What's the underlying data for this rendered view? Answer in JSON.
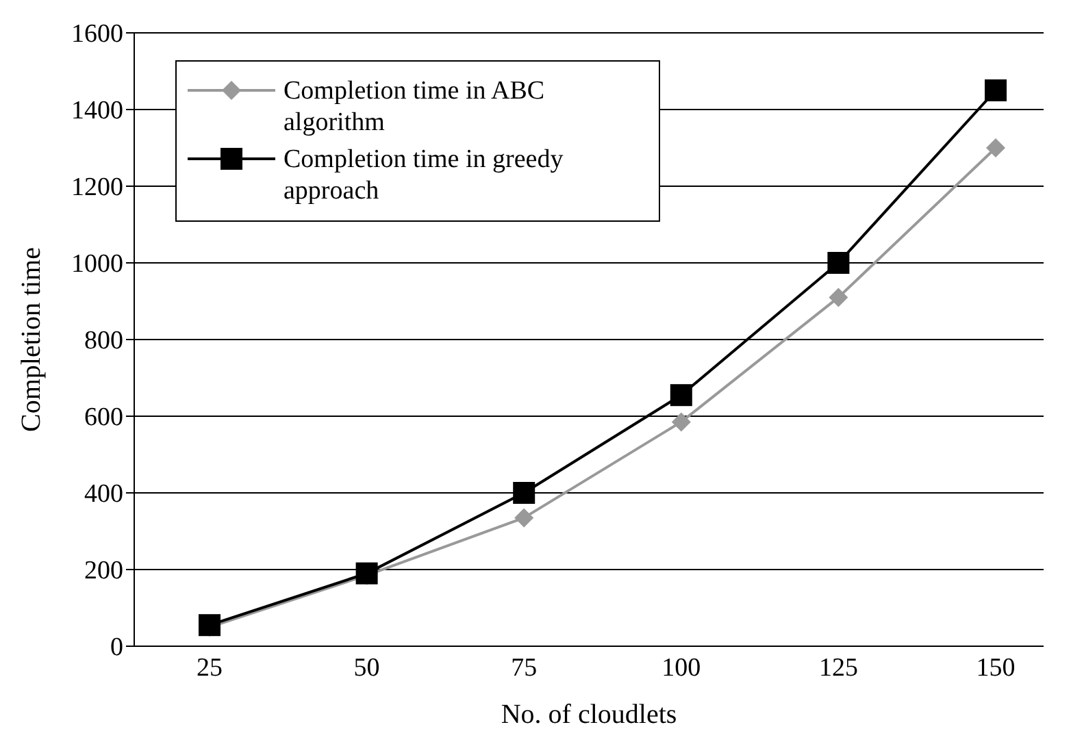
{
  "chart_data": {
    "type": "line",
    "xlabel": "No. of cloudlets",
    "ylabel": "Completion time",
    "categories": [
      "25",
      "50",
      "75",
      "100",
      "125",
      "150"
    ],
    "series": [
      {
        "name": "Completion time in ABC algorithm",
        "color": "#999999",
        "marker": "diamond",
        "values": [
          50,
          185,
          335,
          585,
          910,
          1300
        ]
      },
      {
        "name": "Completion time in greedy approach",
        "color": "#000000",
        "marker": "square",
        "values": [
          55,
          190,
          400,
          655,
          1000,
          1450
        ]
      }
    ],
    "ylim": [
      0,
      1600
    ],
    "yticks": [
      0,
      200,
      400,
      600,
      800,
      1000,
      1200,
      1400,
      1600
    ],
    "grid": "y",
    "legend": "top left"
  }
}
